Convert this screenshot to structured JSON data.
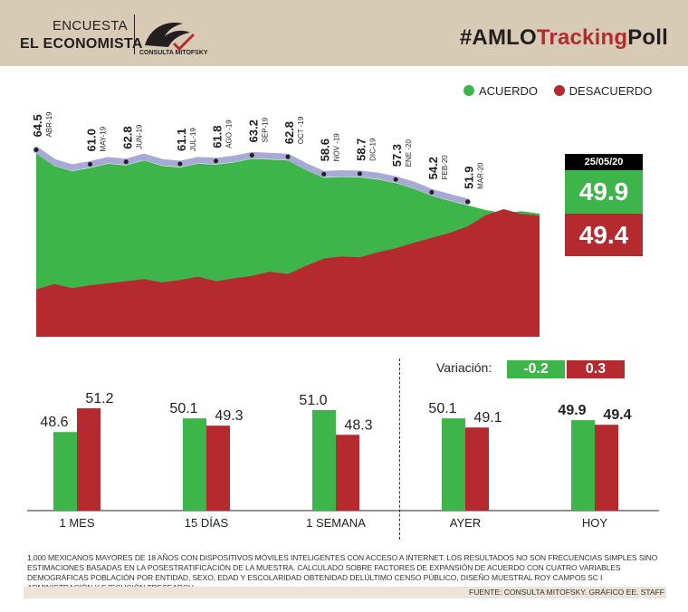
{
  "header": {
    "brand_line1": "ENCUESTA",
    "brand_line2": "EL ECONOMISTA",
    "logo_text": "CONSULTA MITOFSKY",
    "hashtag_prefix": "#AMLO",
    "hashtag_red": "Tracking",
    "hashtag_suffix": "Poll"
  },
  "colors": {
    "acuerdo": "#3db54a",
    "desacuerdo": "#b52a2e",
    "trend_line": "#a7a9d6",
    "header_bg": "#d8cbb6"
  },
  "legend": {
    "acuerdo": "ACUERDO",
    "desacuerdo": "DESACUERDO"
  },
  "current": {
    "date": "25/05/20",
    "acuerdo": "49.9",
    "desacuerdo": "49.4"
  },
  "variation": {
    "label": "Variación:",
    "acuerdo": "-0.2",
    "desacuerdo": "0.3"
  },
  "chart_data": [
    {
      "type": "area",
      "series": [
        {
          "name": "ACUERDO",
          "values": [
            64.5,
            61.5,
            60.2,
            61.0,
            62.0,
            61.6,
            62.8,
            61.5,
            61.1,
            62.0,
            61.8,
            62.3,
            63.2,
            63.0,
            62.8,
            60.5,
            58.6,
            58.8,
            58.7,
            58.2,
            57.3,
            56.0,
            54.2,
            53.0,
            51.9,
            50.8,
            50.0,
            50.5,
            49.9
          ]
        },
        {
          "name": "DESACUERDO",
          "values": [
            31.5,
            32.8,
            31.8,
            32.5,
            33.0,
            33.5,
            34.0,
            33.2,
            33.8,
            34.6,
            33.5,
            34.2,
            34.8,
            35.8,
            35.2,
            37.2,
            39.0,
            39.5,
            39.3,
            40.5,
            41.5,
            42.8,
            44.0,
            45.2,
            46.8,
            49.5,
            51.0,
            49.8,
            49.4
          ]
        }
      ],
      "annotations": [
        {
          "value": "64.5",
          "label": "ABR-19"
        },
        {
          "value": "61.0",
          "label": "MAY-19"
        },
        {
          "value": "62.8",
          "label": "JUN-19"
        },
        {
          "value": "61.1",
          "label": "JUL-19"
        },
        {
          "value": "61.8",
          "label": "AGO -19"
        },
        {
          "value": "63.2",
          "label": "SEP-19"
        },
        {
          "value": "62.8",
          "label": "OCT -19"
        },
        {
          "value": "58.6",
          "label": "NOV -19"
        },
        {
          "value": "58.7",
          "label": "DIC-19"
        },
        {
          "value": "57.3",
          "label": "ENE -20"
        },
        {
          "value": "54.2",
          "label": "FEB-20"
        },
        {
          "value": "51.9",
          "label": "MAR-20"
        }
      ]
    },
    {
      "type": "bar",
      "categories": [
        "1 MES",
        "15 DÍAS",
        "1 SEMANA",
        "AYER",
        "HOY"
      ],
      "series": [
        {
          "name": "ACUERDO",
          "values": [
            48.6,
            50.1,
            51.0,
            50.1,
            49.9
          ],
          "labels": [
            "48.6",
            "50.1",
            "51.0",
            "50.1",
            "49.9"
          ]
        },
        {
          "name": "DESACUERDO",
          "values": [
            51.2,
            49.3,
            48.3,
            49.1,
            49.4
          ],
          "labels": [
            "51.2",
            "49.3",
            "48.3",
            "49.1",
            "49.4"
          ]
        }
      ]
    }
  ],
  "footnote": "1,000 MEXICANOS MAYORES DE 18 AÑOS CON DISPOSITIVOS MÓVILES INTELIGENTES CON ACCESO A INTERNET. LOS RESULTADOS NO SON FRECUENCIAS SIMPLES SINO ESTIMACIONES BASADAS EN LA POSESTRATIFICACIÓN DE LA MUESTRA. CALCULADO SOBRE FACTORES DE EXPANSIÓN DE ACUERDO CON CUATRO VARIABLES DEMOGRÁFICAS POBLACIÓN POR ENTIDAD, SEXO, EDAD Y ESCOLARIDAD OBTENIDAD DELÚLTIMO CENSO PÚBLICO, DISEÑO MUESTRAL ROY CAMPOS SC I ADMINISTRACIÓN Y EJECUCIÓN TRESEARCH.",
  "source": "FUENTE: CONSULTA MITOFSKY. GRÁFICO EE. STAFF"
}
